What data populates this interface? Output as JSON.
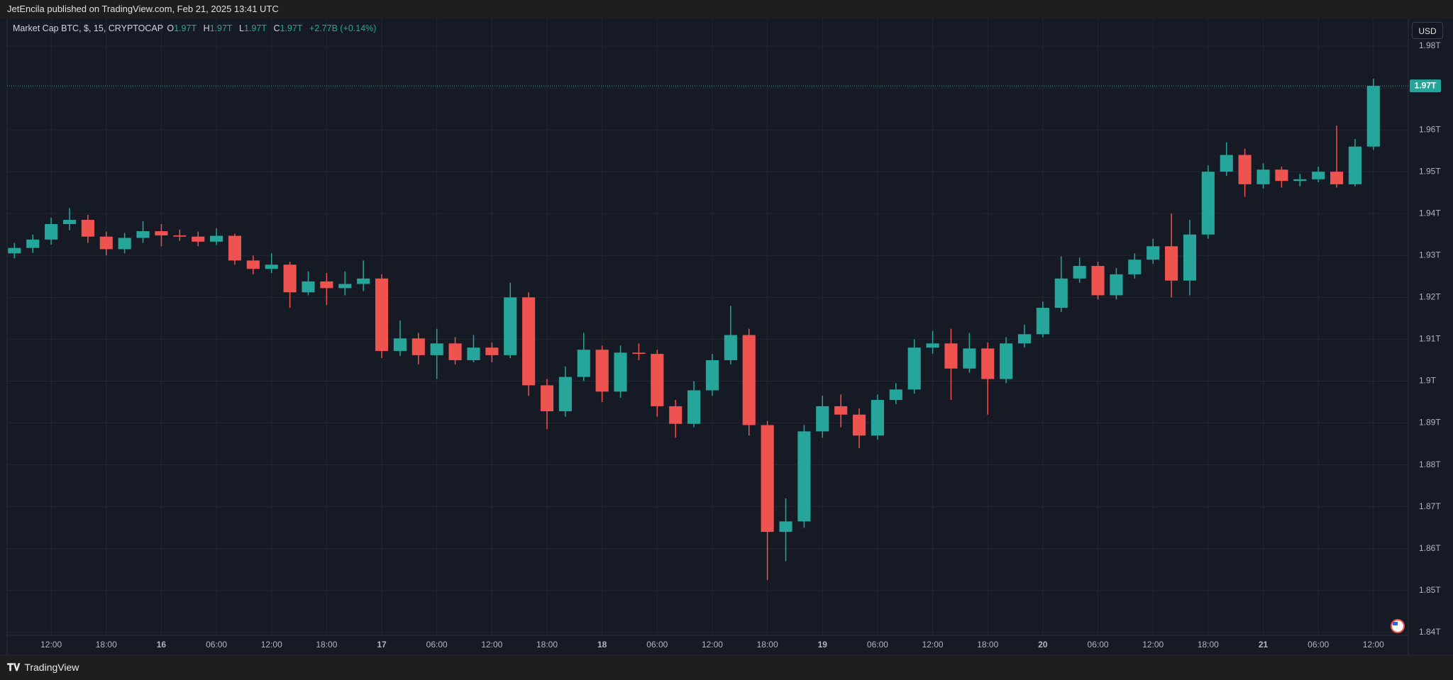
{
  "header": {
    "text": "JetEncila published on TradingView.com, Feb 21, 2025 13:41 UTC"
  },
  "footer": {
    "brand": "TradingView"
  },
  "chart_data": {
    "type": "candlestick",
    "legend": {
      "symbol": "Market Cap BTC, $, 15, CRYPTOCAP",
      "open_label": "O",
      "open": "1.97T",
      "high_label": "H",
      "high": "1.97T",
      "low_label": "L",
      "low": "1.97T",
      "close_label": "C",
      "close": "1.97T",
      "change": "+2.77B (+0.14%)"
    },
    "currency": "USD",
    "last_price_label": "1.97T",
    "up_color": "#26a69a",
    "down_color": "#ef5350",
    "grid": true,
    "x": [
      8,
      10,
      12,
      14,
      16,
      18,
      20,
      22,
      24,
      26,
      28,
      30,
      32,
      34,
      36,
      38,
      40,
      42,
      44,
      46,
      48,
      50,
      52,
      54,
      56,
      58,
      60,
      62,
      64,
      66,
      68,
      70,
      72,
      74,
      76,
      78,
      80,
      82,
      84,
      86,
      88,
      90,
      92,
      94,
      96,
      98,
      100,
      102,
      104,
      106,
      108,
      110,
      112,
      114,
      116,
      118,
      120,
      122,
      124,
      126,
      128,
      130,
      132,
      134,
      136,
      138,
      140,
      142,
      144,
      146,
      148,
      150,
      152,
      154,
      156
    ],
    "open": [
      1.9305,
      1.9318,
      1.9338,
      1.9375,
      1.9385,
      1.9345,
      1.9315,
      1.9342,
      1.9358,
      1.9348,
      1.9345,
      1.9333,
      1.9347,
      1.9288,
      1.9268,
      1.9278,
      1.9212,
      1.9238,
      1.9222,
      1.9232,
      1.9245,
      1.9072,
      1.9102,
      1.9062,
      1.909,
      1.905,
      1.908,
      1.9062,
      1.92,
      1.899,
      1.8928,
      1.901,
      1.9075,
      1.8975,
      1.9068,
      1.9065,
      1.894,
      1.8898,
      1.8978,
      1.905,
      1.911,
      1.8895,
      1.864,
      1.8665,
      1.888,
      1.894,
      1.892,
      1.887,
      1.8955,
      1.898,
      1.908,
      1.909,
      1.903,
      1.9078,
      1.9005,
      1.909,
      1.9112,
      1.9175,
      1.9245,
      1.9275,
      1.9205,
      1.9255,
      1.929,
      1.9322,
      1.924,
      1.935,
      1.95,
      1.954,
      1.947,
      1.9505,
      1.9478,
      1.9482,
      1.95,
      1.947,
      1.956
    ],
    "high": [
      1.933,
      1.935,
      1.939,
      1.9413,
      1.9397,
      1.9357,
      1.9354,
      1.9382,
      1.9375,
      1.9362,
      1.9357,
      1.9365,
      1.9352,
      1.93,
      1.9305,
      1.9285,
      1.9262,
      1.9258,
      1.9262,
      1.9288,
      1.9255,
      1.9145,
      1.9115,
      1.9125,
      1.9105,
      1.911,
      1.9092,
      1.9235,
      1.9212,
      1.9005,
      1.9035,
      1.9115,
      1.9085,
      1.9085,
      1.909,
      1.9075,
      1.8955,
      1.9,
      1.9065,
      1.918,
      1.9125,
      1.8905,
      1.872,
      1.8895,
      1.8965,
      1.8968,
      1.8935,
      1.8968,
      1.8995,
      1.91,
      1.912,
      1.9125,
      1.9115,
      1.9092,
      1.9105,
      1.9135,
      1.919,
      1.9298,
      1.9295,
      1.9285,
      1.927,
      1.9305,
      1.934,
      1.94,
      1.9385,
      1.9515,
      1.957,
      1.9555,
      1.952,
      1.9512,
      1.9495,
      1.9512,
      1.961,
      1.9578,
      1.9722
    ],
    "low": [
      1.9293,
      1.9306,
      1.9326,
      1.936,
      1.933,
      1.93,
      1.9305,
      1.933,
      1.9322,
      1.9335,
      1.9322,
      1.9325,
      1.9278,
      1.9255,
      1.9258,
      1.9175,
      1.9205,
      1.9182,
      1.9205,
      1.9215,
      1.9055,
      1.906,
      1.904,
      1.9005,
      1.904,
      1.9045,
      1.9045,
      1.9055,
      1.8965,
      1.8885,
      1.8915,
      1.9,
      1.895,
      1.896,
      1.905,
      1.8915,
      1.8865,
      1.889,
      1.8965,
      1.904,
      1.887,
      1.8525,
      1.857,
      1.865,
      1.8865,
      1.889,
      1.884,
      1.886,
      1.8945,
      1.897,
      1.9065,
      1.8955,
      1.902,
      1.892,
      1.8995,
      1.908,
      1.9105,
      1.9165,
      1.9235,
      1.9195,
      1.9195,
      1.9245,
      1.928,
      1.92,
      1.9205,
      1.934,
      1.949,
      1.944,
      1.946,
      1.9462,
      1.9465,
      1.9475,
      1.9462,
      1.9465,
      1.9552
    ],
    "close": [
      1.9318,
      1.9338,
      1.9375,
      1.9385,
      1.9345,
      1.9315,
      1.9342,
      1.9358,
      1.9348,
      1.9345,
      1.9333,
      1.9347,
      1.9288,
      1.9268,
      1.9278,
      1.9212,
      1.9238,
      1.9222,
      1.9232,
      1.9245,
      1.9072,
      1.9102,
      1.9062,
      1.909,
      1.905,
      1.908,
      1.9062,
      1.92,
      1.899,
      1.8928,
      1.901,
      1.9075,
      1.8975,
      1.9068,
      1.9065,
      1.894,
      1.8898,
      1.8978,
      1.905,
      1.911,
      1.8895,
      1.864,
      1.8665,
      1.888,
      1.894,
      1.892,
      1.887,
      1.8955,
      1.898,
      1.908,
      1.909,
      1.903,
      1.9078,
      1.9005,
      1.909,
      1.9112,
      1.9175,
      1.9245,
      1.9275,
      1.9205,
      1.9255,
      1.929,
      1.9322,
      1.924,
      1.935,
      1.95,
      1.954,
      1.947,
      1.9505,
      1.9478,
      1.9482,
      1.95,
      1.947,
      1.956,
      1.9705
    ],
    "xlim": [
      7.2,
      159.8
    ],
    "xticks": [
      {
        "value": 12,
        "label": "12:00"
      },
      {
        "value": 18,
        "label": "18:00"
      },
      {
        "value": 24,
        "label": "16"
      },
      {
        "value": 30,
        "label": "06:00"
      },
      {
        "value": 36,
        "label": "12:00"
      },
      {
        "value": 42,
        "label": "18:00"
      },
      {
        "value": 48,
        "label": "17"
      },
      {
        "value": 54,
        "label": "06:00"
      },
      {
        "value": 60,
        "label": "12:00"
      },
      {
        "value": 66,
        "label": "18:00"
      },
      {
        "value": 72,
        "label": "18"
      },
      {
        "value": 78,
        "label": "06:00"
      },
      {
        "value": 84,
        "label": "12:00"
      },
      {
        "value": 90,
        "label": "18:00"
      },
      {
        "value": 96,
        "label": "19"
      },
      {
        "value": 102,
        "label": "06:00"
      },
      {
        "value": 108,
        "label": "12:00"
      },
      {
        "value": 114,
        "label": "18:00"
      },
      {
        "value": 120,
        "label": "20"
      },
      {
        "value": 126,
        "label": "06:00"
      },
      {
        "value": 132,
        "label": "12:00"
      },
      {
        "value": 138,
        "label": "18:00"
      },
      {
        "value": 144,
        "label": "21"
      },
      {
        "value": 150,
        "label": "06:00"
      },
      {
        "value": 156,
        "label": "12:00"
      }
    ],
    "ylim": [
      1.8393,
      1.9866
    ],
    "yticks": [
      {
        "value": 1.84,
        "label": "1.84T"
      },
      {
        "value": 1.85,
        "label": "1.85T"
      },
      {
        "value": 1.86,
        "label": "1.86T"
      },
      {
        "value": 1.87,
        "label": "1.87T"
      },
      {
        "value": 1.88,
        "label": "1.88T"
      },
      {
        "value": 1.89,
        "label": "1.89T"
      },
      {
        "value": 1.9,
        "label": "1.9T"
      },
      {
        "value": 1.91,
        "label": "1.91T"
      },
      {
        "value": 1.92,
        "label": "1.92T"
      },
      {
        "value": 1.93,
        "label": "1.93T"
      },
      {
        "value": 1.94,
        "label": "1.94T"
      },
      {
        "value": 1.95,
        "label": "1.95T"
      },
      {
        "value": 1.96,
        "label": "1.96T"
      },
      {
        "value": 1.97,
        "label": "1.97T"
      },
      {
        "value": 1.98,
        "label": "1.98T"
      }
    ]
  }
}
